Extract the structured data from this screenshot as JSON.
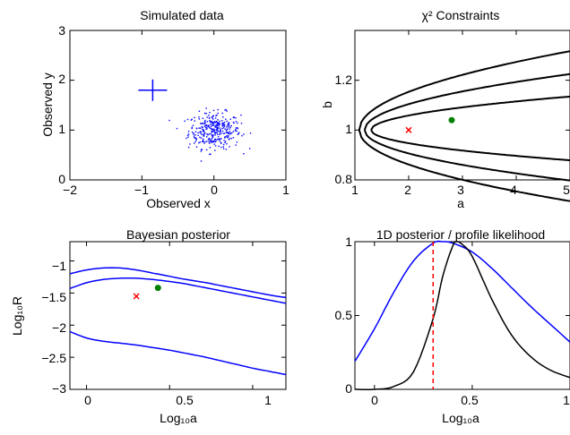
{
  "chart_data": [
    {
      "type": "scatter",
      "title": "Simulated data",
      "xlabel": "Observed x",
      "ylabel": "Observed y",
      "xlim": [
        -2,
        1
      ],
      "ylim": [
        0,
        3
      ],
      "xticks": [
        "−2",
        "−1",
        "0",
        "1"
      ],
      "yticks": [
        "0",
        "1",
        "2",
        "3"
      ],
      "marker": {
        "x": -0.85,
        "y": 1.8,
        "color": "#0000ff"
      },
      "scatter_center": [
        0.0,
        1.0
      ],
      "scatter_spread": [
        0.18,
        0.18
      ],
      "scatter_color": "#0000ff"
    },
    {
      "type": "line",
      "title": "χ² Constraints",
      "xlabel": "a",
      "ylabel": "b",
      "xlim": [
        1,
        5
      ],
      "ylim": [
        0.8,
        1.4
      ],
      "xticks": [
        "1",
        "2",
        "3",
        "4",
        "5"
      ],
      "yticks": [
        "0.8",
        "1",
        "1.2"
      ],
      "contour_tips": [
        1.3,
        1.18,
        1.08
      ],
      "contour_widths": [
        0.07,
        0.115,
        0.16
      ],
      "true_point": {
        "x": 2.0,
        "y": 1.0,
        "color": "#ff0000"
      },
      "best_fit_point": {
        "x": 2.8,
        "y": 1.04,
        "color": "#008000"
      }
    },
    {
      "type": "line",
      "title": "Bayesian posterior",
      "xlabel": "Log₁₀a",
      "ylabel": "Log₁₀R",
      "xlim": [
        -0.1,
        1.2
      ],
      "ylim": [
        -3,
        -0.7
      ],
      "xticks": [
        "0",
        "0.5",
        "1"
      ],
      "yticks": [
        "−3",
        "−2.5",
        "−2",
        "−1.5",
        "−1"
      ],
      "series": [
        {
          "values": [
            [
              -0.1,
              -1.2
            ],
            [
              0.0,
              -1.14
            ],
            [
              0.1,
              -1.11
            ],
            [
              0.2,
              -1.11
            ],
            [
              0.3,
              -1.14
            ],
            [
              0.4,
              -1.19
            ],
            [
              0.5,
              -1.24
            ],
            [
              0.6,
              -1.29
            ],
            [
              0.7,
              -1.33
            ],
            [
              0.8,
              -1.38
            ],
            [
              0.9,
              -1.43
            ],
            [
              1.0,
              -1.48
            ],
            [
              1.1,
              -1.53
            ],
            [
              1.2,
              -1.57
            ]
          ]
        },
        {
          "values": [
            [
              -0.1,
              -1.43
            ],
            [
              0.0,
              -1.34
            ],
            [
              0.1,
              -1.29
            ],
            [
              0.2,
              -1.27
            ],
            [
              0.3,
              -1.27
            ],
            [
              0.4,
              -1.29
            ],
            [
              0.5,
              -1.32
            ],
            [
              0.6,
              -1.36
            ],
            [
              0.7,
              -1.41
            ],
            [
              0.8,
              -1.46
            ],
            [
              0.9,
              -1.51
            ],
            [
              1.0,
              -1.56
            ],
            [
              1.1,
              -1.61
            ],
            [
              1.2,
              -1.66
            ]
          ]
        },
        {
          "values": [
            [
              -0.1,
              -2.1
            ],
            [
              0.0,
              -2.2
            ],
            [
              0.1,
              -2.25
            ],
            [
              0.2,
              -2.28
            ],
            [
              0.3,
              -2.31
            ],
            [
              0.4,
              -2.35
            ],
            [
              0.5,
              -2.39
            ],
            [
              0.6,
              -2.44
            ],
            [
              0.7,
              -2.49
            ],
            [
              0.8,
              -2.55
            ],
            [
              0.9,
              -2.61
            ],
            [
              1.0,
              -2.67
            ],
            [
              1.1,
              -2.72
            ],
            [
              1.2,
              -2.77
            ]
          ]
        }
      ],
      "line_color": "#0000ff",
      "true_point": {
        "x": 0.3,
        "y": -1.55,
        "color": "#ff0000"
      },
      "best_fit_point": {
        "x": 0.43,
        "y": -1.42,
        "color": "#008000"
      }
    },
    {
      "type": "line",
      "title": "1D posterior / profile likelihood",
      "xlabel": "Log₁₀a",
      "ylabel": "",
      "xlim": [
        -0.1,
        1.0
      ],
      "ylim": [
        0,
        1
      ],
      "xticks": [
        "0",
        "0.5",
        "1"
      ],
      "yticks": [
        "0",
        "0.5",
        "1"
      ],
      "series": [
        {
          "color": "#0000ff",
          "values": [
            [
              -0.1,
              0.19
            ],
            [
              0.0,
              0.41
            ],
            [
              0.1,
              0.66
            ],
            [
              0.2,
              0.87
            ],
            [
              0.3,
              0.99
            ],
            [
              0.35,
              1.0
            ],
            [
              0.4,
              0.99
            ],
            [
              0.5,
              0.93
            ],
            [
              0.6,
              0.82
            ],
            [
              0.7,
              0.69
            ],
            [
              0.8,
              0.56
            ],
            [
              0.9,
              0.44
            ],
            [
              1.0,
              0.32
            ]
          ]
        },
        {
          "color": "#000000",
          "values": [
            [
              -0.1,
              0.0
            ],
            [
              0.0,
              0.0
            ],
            [
              0.1,
              0.02
            ],
            [
              0.2,
              0.12
            ],
            [
              0.3,
              0.48
            ],
            [
              0.35,
              0.77
            ],
            [
              0.4,
              0.97
            ],
            [
              0.42,
              1.0
            ],
            [
              0.45,
              0.98
            ],
            [
              0.5,
              0.9
            ],
            [
              0.6,
              0.61
            ],
            [
              0.7,
              0.37
            ],
            [
              0.8,
              0.22
            ],
            [
              0.9,
              0.13
            ],
            [
              1.0,
              0.08
            ]
          ]
        }
      ],
      "vline": {
        "x": 0.3,
        "color": "#ff0000",
        "style": "dashed"
      }
    }
  ]
}
